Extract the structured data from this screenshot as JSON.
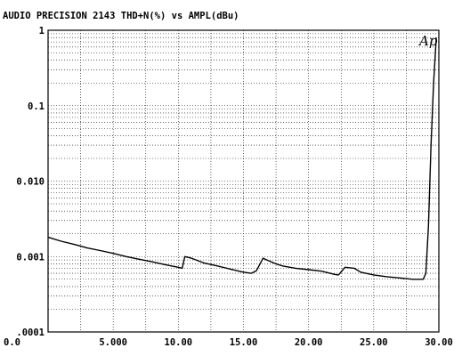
{
  "chart_data": {
    "type": "line",
    "title": "AUDIO PRECISION 2143  THD+N(%) vs AMPL(dBu)",
    "logo": "Ap",
    "xlabel": "",
    "ylabel": "",
    "x_scale": "linear",
    "y_scale": "log",
    "xlim": [
      0,
      30
    ],
    "ylim": [
      0.0001,
      1
    ],
    "grid": true,
    "x_ticks": [
      {
        "value": 0,
        "label": "0.0"
      },
      {
        "value": 5,
        "label": "5.000"
      },
      {
        "value": 10,
        "label": "10.00"
      },
      {
        "value": 15,
        "label": "15.00"
      },
      {
        "value": 20,
        "label": "20.00"
      },
      {
        "value": 25,
        "label": "25.00"
      },
      {
        "value": 30,
        "label": "30.00"
      }
    ],
    "y_ticks": [
      {
        "value": 1,
        "label": "1"
      },
      {
        "value": 0.1,
        "label": "0.1"
      },
      {
        "value": 0.01,
        "label": "0.010"
      },
      {
        "value": 0.001,
        "label": "0.001"
      },
      {
        "value": 0.0001,
        "label": ".0001"
      }
    ],
    "series": [
      {
        "x": [
          0,
          1,
          2,
          3,
          4,
          5,
          6,
          7,
          8,
          9,
          10,
          10.3,
          10.5,
          11,
          12,
          13,
          14,
          15,
          15.6,
          16,
          16.5,
          16.8,
          17.5,
          18,
          19,
          20,
          21,
          22,
          22.3,
          22.8,
          23.5,
          24,
          25,
          26,
          27,
          28,
          28.5,
          28.8,
          29,
          29.2,
          29.4,
          29.6,
          29.8
        ],
        "y": [
          0.0018,
          0.0016,
          0.00145,
          0.0013,
          0.0012,
          0.0011,
          0.001,
          0.00092,
          0.00085,
          0.00078,
          0.00072,
          0.0007,
          0.001,
          0.00095,
          0.00082,
          0.00075,
          0.00068,
          0.00062,
          0.0006,
          0.00065,
          0.00095,
          0.0009,
          0.0008,
          0.00075,
          0.0007,
          0.00067,
          0.00064,
          0.00058,
          0.00057,
          0.00072,
          0.0007,
          0.00062,
          0.00057,
          0.00054,
          0.00052,
          0.0005,
          0.0005,
          0.0005,
          0.0006,
          0.0025,
          0.03,
          0.2,
          0.8
        ]
      }
    ]
  }
}
